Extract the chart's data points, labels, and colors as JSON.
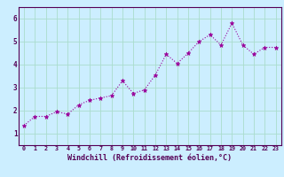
{
  "x": [
    0,
    1,
    2,
    3,
    4,
    5,
    6,
    7,
    8,
    9,
    10,
    11,
    12,
    13,
    14,
    15,
    16,
    17,
    18,
    19,
    20,
    21,
    22,
    23
  ],
  "y": [
    1.35,
    1.75,
    1.75,
    1.95,
    1.85,
    2.25,
    2.45,
    2.55,
    2.65,
    3.3,
    2.75,
    2.9,
    3.55,
    4.45,
    4.05,
    4.5,
    5.0,
    5.3,
    4.85,
    5.8,
    4.85,
    4.45,
    4.75,
    4.75
  ],
  "line_color": "#990099",
  "marker": "*",
  "bg_color": "#cceeff",
  "grid_color": "#aaddcc",
  "axis_label_color": "#550055",
  "tick_color": "#550055",
  "xlabel": "Windchill (Refroidissement éolien,°C)",
  "ylim": [
    0.5,
    6.5
  ],
  "xlim": [
    -0.5,
    23.5
  ],
  "yticks": [
    1,
    2,
    3,
    4,
    5,
    6
  ],
  "xticks": [
    0,
    1,
    2,
    3,
    4,
    5,
    6,
    7,
    8,
    9,
    10,
    11,
    12,
    13,
    14,
    15,
    16,
    17,
    18,
    19,
    20,
    21,
    22,
    23
  ]
}
